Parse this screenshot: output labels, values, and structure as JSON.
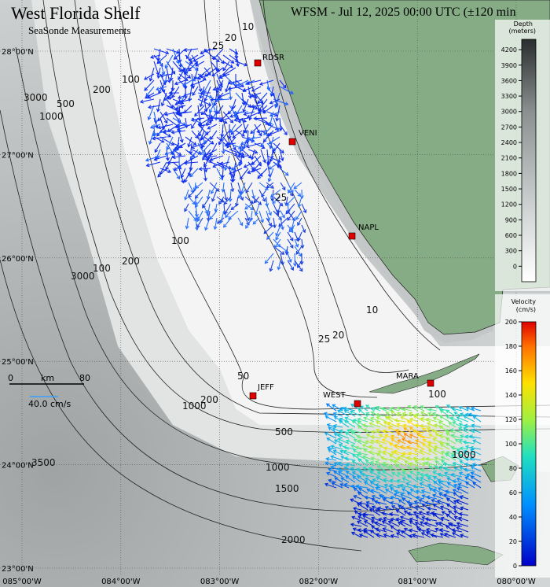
{
  "map": {
    "title": "West Florida Shelf",
    "subtitle": "SeaSonde Measurements",
    "header": "WFSM - Jul 12, 2025 00:00 UTC (±120 min",
    "latitude_labels": [
      "28°00'N",
      "27°00'N",
      "26°00'N",
      "25°00'N",
      "24°00'N",
      "23°00'N"
    ],
    "longitude_labels": [
      "085°00'W",
      "084°00'W",
      "083°00'W",
      "082°00'W",
      "081°00'W",
      "080°00'W"
    ],
    "stations": [
      "RDSR",
      "VENI",
      "NAPL",
      "JEFF",
      "WEST",
      "MARA"
    ],
    "contour_labels": [
      "10",
      "20",
      "25",
      "100",
      "200",
      "500",
      "1000",
      "3000",
      "100",
      "200",
      "3000",
      "100",
      "25",
      "10",
      "20",
      "25",
      "50",
      "200",
      "1000",
      "500",
      "1000",
      "1500",
      "2000",
      "3500",
      "100",
      "1000"
    ],
    "scale_bar": {
      "start": "0",
      "unit": "km",
      "end": "80",
      "vector": "40.0 cm/s"
    },
    "depth_colorbar": {
      "title": [
        "Depth",
        "(meters)"
      ],
      "range": [
        -300,
        4400
      ],
      "ticks": [
        0,
        300,
        600,
        900,
        1200,
        1500,
        1800,
        2100,
        2400,
        2700,
        3000,
        3300,
        3600,
        3900,
        4200
      ]
    },
    "velocity_colorbar": {
      "title": [
        "Velocity",
        "(cm/s)"
      ],
      "range": [
        0,
        200
      ],
      "ticks": [
        0,
        20,
        40,
        60,
        80,
        100,
        120,
        140,
        160,
        180,
        200
      ]
    }
  }
}
